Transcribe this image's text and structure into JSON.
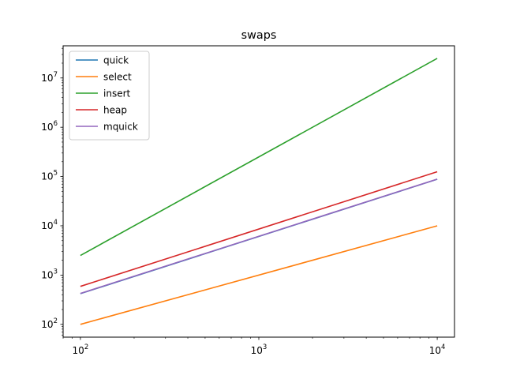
{
  "chart_data": {
    "type": "line",
    "title": "swaps",
    "xlabel": "",
    "ylabel": "",
    "xscale": "log",
    "yscale": "log",
    "xlim": [
      80,
      12500
    ],
    "ylim": [
      55,
      45000000
    ],
    "x_ticks": [
      {
        "value": 100,
        "base": "10",
        "exp": "2"
      },
      {
        "value": 1000,
        "base": "10",
        "exp": "3"
      },
      {
        "value": 10000,
        "base": "10",
        "exp": "4"
      }
    ],
    "y_ticks": [
      {
        "value": 100,
        "base": "10",
        "exp": "2"
      },
      {
        "value": 1000,
        "base": "10",
        "exp": "3"
      },
      {
        "value": 10000,
        "base": "10",
        "exp": "4"
      },
      {
        "value": 100000,
        "base": "10",
        "exp": "5"
      },
      {
        "value": 1000000,
        "base": "10",
        "exp": "6"
      },
      {
        "value": 10000000,
        "base": "10",
        "exp": "7"
      }
    ],
    "grid": false,
    "legend_position": "top-left",
    "series": [
      {
        "name": "quick",
        "color": "#1f77b4",
        "x": [
          100,
          10000
        ],
        "y": [
          420,
          88000
        ]
      },
      {
        "name": "select",
        "color": "#ff7f0e",
        "x": [
          100,
          10000
        ],
        "y": [
          100,
          10000
        ]
      },
      {
        "name": "insert",
        "color": "#2ca02c",
        "x": [
          100,
          10000
        ],
        "y": [
          2500,
          25000000
        ]
      },
      {
        "name": "heap",
        "color": "#d62728",
        "x": [
          100,
          10000
        ],
        "y": [
          590,
          125000
        ]
      },
      {
        "name": "mquick",
        "color": "#9467bd",
        "x": [
          100,
          10000
        ],
        "y": [
          425,
          88500
        ]
      }
    ]
  }
}
